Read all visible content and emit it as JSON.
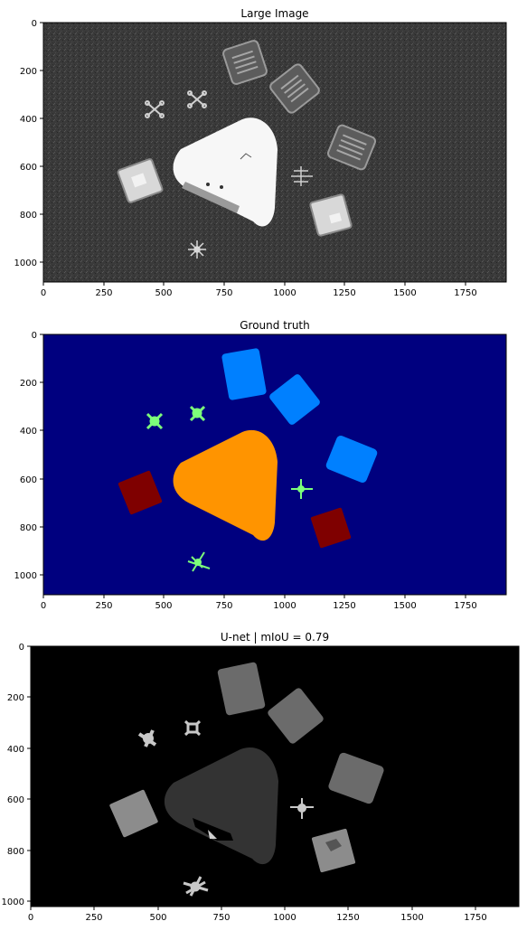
{
  "chart_data": [
    {
      "type": "image",
      "title": "Large Image",
      "xlim": [
        0,
        1920
      ],
      "ylim": [
        1080,
        0
      ],
      "xticks": [
        0,
        250,
        500,
        750,
        1000,
        1250,
        1500,
        1750
      ],
      "yticks": [
        0,
        200,
        400,
        600,
        800,
        1000
      ],
      "colors": {
        "background": "#3a3a3a",
        "object": "#d8d8d8",
        "bright": "#f7f7f7",
        "shadow": "#8a8a8a"
      }
    },
    {
      "type": "image",
      "title": "Ground truth",
      "xlim": [
        0,
        1920
      ],
      "ylim": [
        1080,
        0
      ],
      "xticks": [
        0,
        250,
        500,
        750,
        1000,
        1250,
        1500,
        1750
      ],
      "yticks": [
        0,
        200,
        400,
        600,
        800,
        1000
      ],
      "colors": {
        "background": "#00007f",
        "boxes": "#0080ff",
        "triangle": "#ff9400",
        "cases": "#7f0000",
        "drones": "#7dff7a"
      }
    },
    {
      "type": "image",
      "title": "U-net | mIoU = 0.79",
      "xlim": [
        0,
        1920
      ],
      "ylim": [
        1020,
        0
      ],
      "xticks": [
        0,
        250,
        500,
        750,
        1000,
        1250,
        1500,
        1750
      ],
      "yticks": [
        0,
        200,
        400,
        600,
        800,
        1000
      ],
      "colors": {
        "background": "#000000",
        "boxes": "#6b6b6b",
        "triangle": "#333333",
        "cases": "#8c8c8c",
        "drones": "#c8c8c8"
      }
    }
  ]
}
